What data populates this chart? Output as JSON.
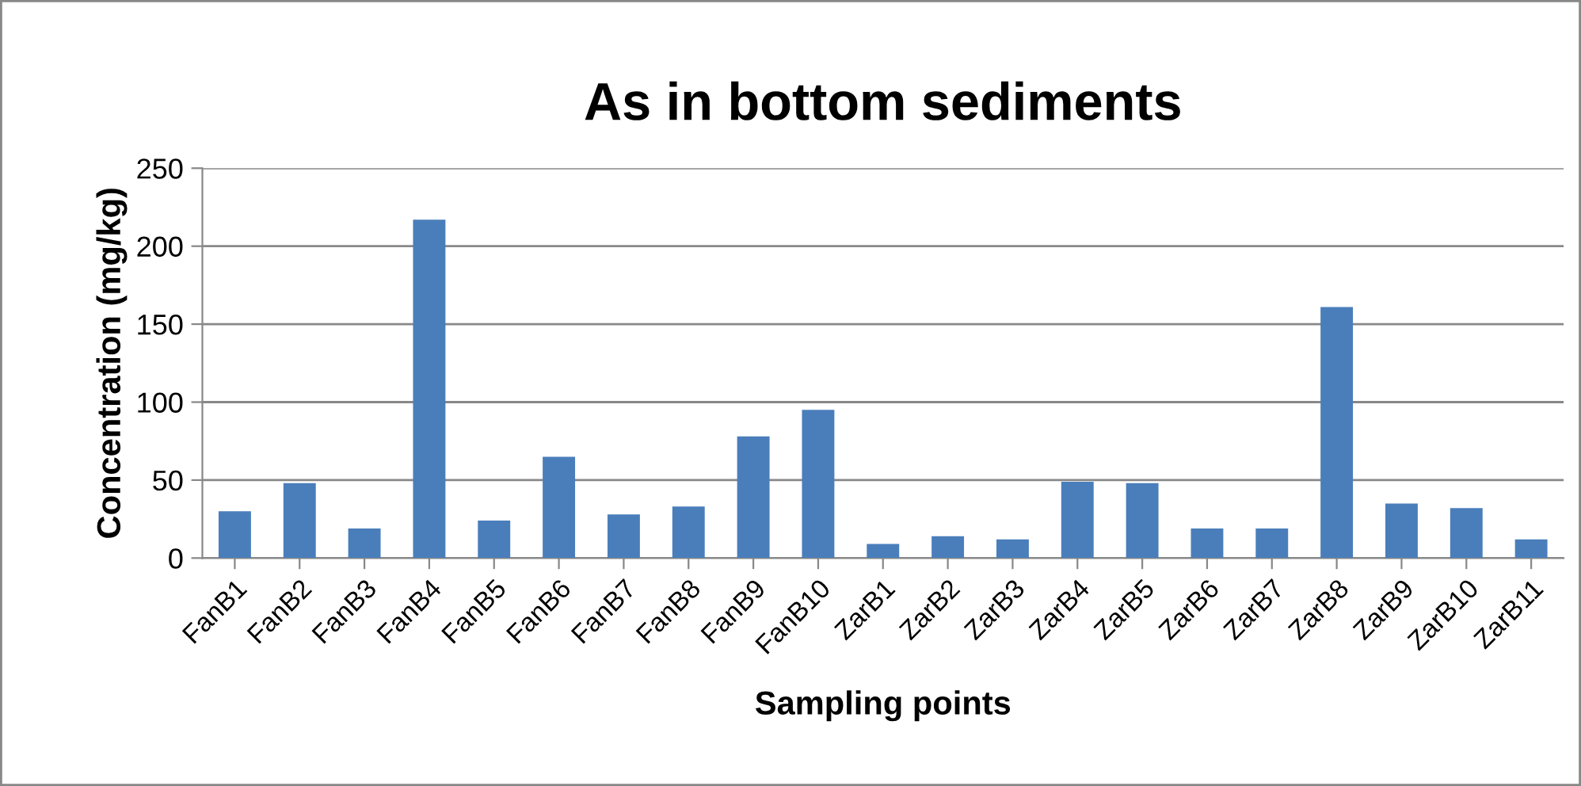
{
  "chart_data": {
    "type": "bar",
    "title": "As in bottom sediments",
    "xlabel": "Sampling points",
    "ylabel": "Concentration (mg/kg)",
    "categories": [
      "FanB1",
      "FanB2",
      "FanB3",
      "FanB4",
      "FanB5",
      "FanB6",
      "FanB7",
      "FanB8",
      "FanB9",
      "FanB10",
      "ZarB1",
      "ZarB2",
      "ZarB3",
      "ZarB4",
      "ZarB5",
      "ZarB6",
      "ZarB7",
      "ZarB8",
      "ZarB9",
      "ZarB10",
      "ZarB11"
    ],
    "values": [
      30,
      48,
      19,
      217,
      24,
      65,
      28,
      33,
      78,
      95,
      9,
      14,
      12,
      49,
      48,
      19,
      19,
      161,
      35,
      32,
      12
    ],
    "color": "#4a7ebb",
    "ylim": [
      0,
      250
    ],
    "yticks": [
      0,
      50,
      100,
      150,
      200,
      250
    ],
    "grid": "y",
    "legend": false
  }
}
